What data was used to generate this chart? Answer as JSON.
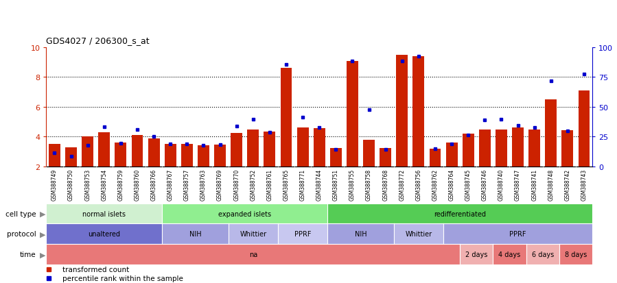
{
  "title": "GDS4027 / 206300_s_at",
  "samples": [
    "GSM388749",
    "GSM388750",
    "GSM388753",
    "GSM388754",
    "GSM388759",
    "GSM388760",
    "GSM388766",
    "GSM388767",
    "GSM388757",
    "GSM388763",
    "GSM388769",
    "GSM388770",
    "GSM388752",
    "GSM388761",
    "GSM388765",
    "GSM388771",
    "GSM388744",
    "GSM388751",
    "GSM388755",
    "GSM388758",
    "GSM388768",
    "GSM388772",
    "GSM388756",
    "GSM388762",
    "GSM388764",
    "GSM388745",
    "GSM388746",
    "GSM388740",
    "GSM388747",
    "GSM388741",
    "GSM388748",
    "GSM388742",
    "GSM388743"
  ],
  "red_values": [
    3.5,
    3.3,
    4.0,
    4.3,
    3.6,
    4.1,
    3.9,
    3.5,
    3.5,
    3.4,
    3.45,
    4.25,
    4.5,
    4.35,
    8.6,
    4.6,
    4.55,
    3.25,
    9.1,
    3.8,
    3.25,
    9.5,
    9.4,
    3.2,
    3.6,
    4.2,
    4.5,
    4.5,
    4.6,
    4.5,
    6.5,
    4.45,
    7.1
  ],
  "blue_values": [
    2.9,
    2.7,
    3.4,
    4.65,
    3.55,
    4.5,
    4.0,
    3.5,
    3.5,
    3.4,
    3.45,
    4.7,
    5.15,
    4.3,
    8.85,
    5.3,
    4.6,
    3.15,
    9.1,
    5.8,
    3.15,
    9.1,
    9.4,
    3.2,
    3.5,
    4.1,
    5.1,
    5.15,
    4.75,
    4.6,
    7.75,
    4.4,
    8.2
  ],
  "y_min": 2,
  "y_max": 10,
  "y_ticks_left": [
    2,
    4,
    6,
    8,
    10
  ],
  "y_ticks_right": [
    0,
    25,
    50,
    75,
    100
  ],
  "cell_type_groups": [
    {
      "label": "normal islets",
      "start": 0,
      "end": 7,
      "color": "#d0f0d0"
    },
    {
      "label": "expanded islets",
      "start": 7,
      "end": 17,
      "color": "#90ee90"
    },
    {
      "label": "redifferentiated",
      "start": 17,
      "end": 33,
      "color": "#55cc55"
    }
  ],
  "protocol_groups": [
    {
      "label": "unaltered",
      "start": 0,
      "end": 7,
      "color": "#7070cc"
    },
    {
      "label": "NIH",
      "start": 7,
      "end": 11,
      "color": "#a0a0dd"
    },
    {
      "label": "Whittier",
      "start": 11,
      "end": 14,
      "color": "#b8b8e8"
    },
    {
      "label": "PPRF",
      "start": 14,
      "end": 17,
      "color": "#c8c8f0"
    },
    {
      "label": "NIH",
      "start": 17,
      "end": 21,
      "color": "#a0a0dd"
    },
    {
      "label": "Whittier",
      "start": 21,
      "end": 24,
      "color": "#b8b8e8"
    },
    {
      "label": "PPRF",
      "start": 24,
      "end": 33,
      "color": "#a0a0dd"
    }
  ],
  "time_groups": [
    {
      "label": "na",
      "start": 0,
      "end": 25,
      "color": "#e87878"
    },
    {
      "label": "2 days",
      "start": 25,
      "end": 27,
      "color": "#f0b0b0"
    },
    {
      "label": "4 days",
      "start": 27,
      "end": 29,
      "color": "#e87878"
    },
    {
      "label": "6 days",
      "start": 29,
      "end": 31,
      "color": "#f0b0b0"
    },
    {
      "label": "8 days",
      "start": 31,
      "end": 33,
      "color": "#e87878"
    }
  ],
  "bar_color": "#cc2200",
  "dot_color": "#0000cc",
  "background_color": "#ffffff",
  "tick_color_left": "#cc2200",
  "tick_color_right": "#0000cc",
  "label_arrow_color": "#888888",
  "xticklabel_bg": "#d8d8d8"
}
